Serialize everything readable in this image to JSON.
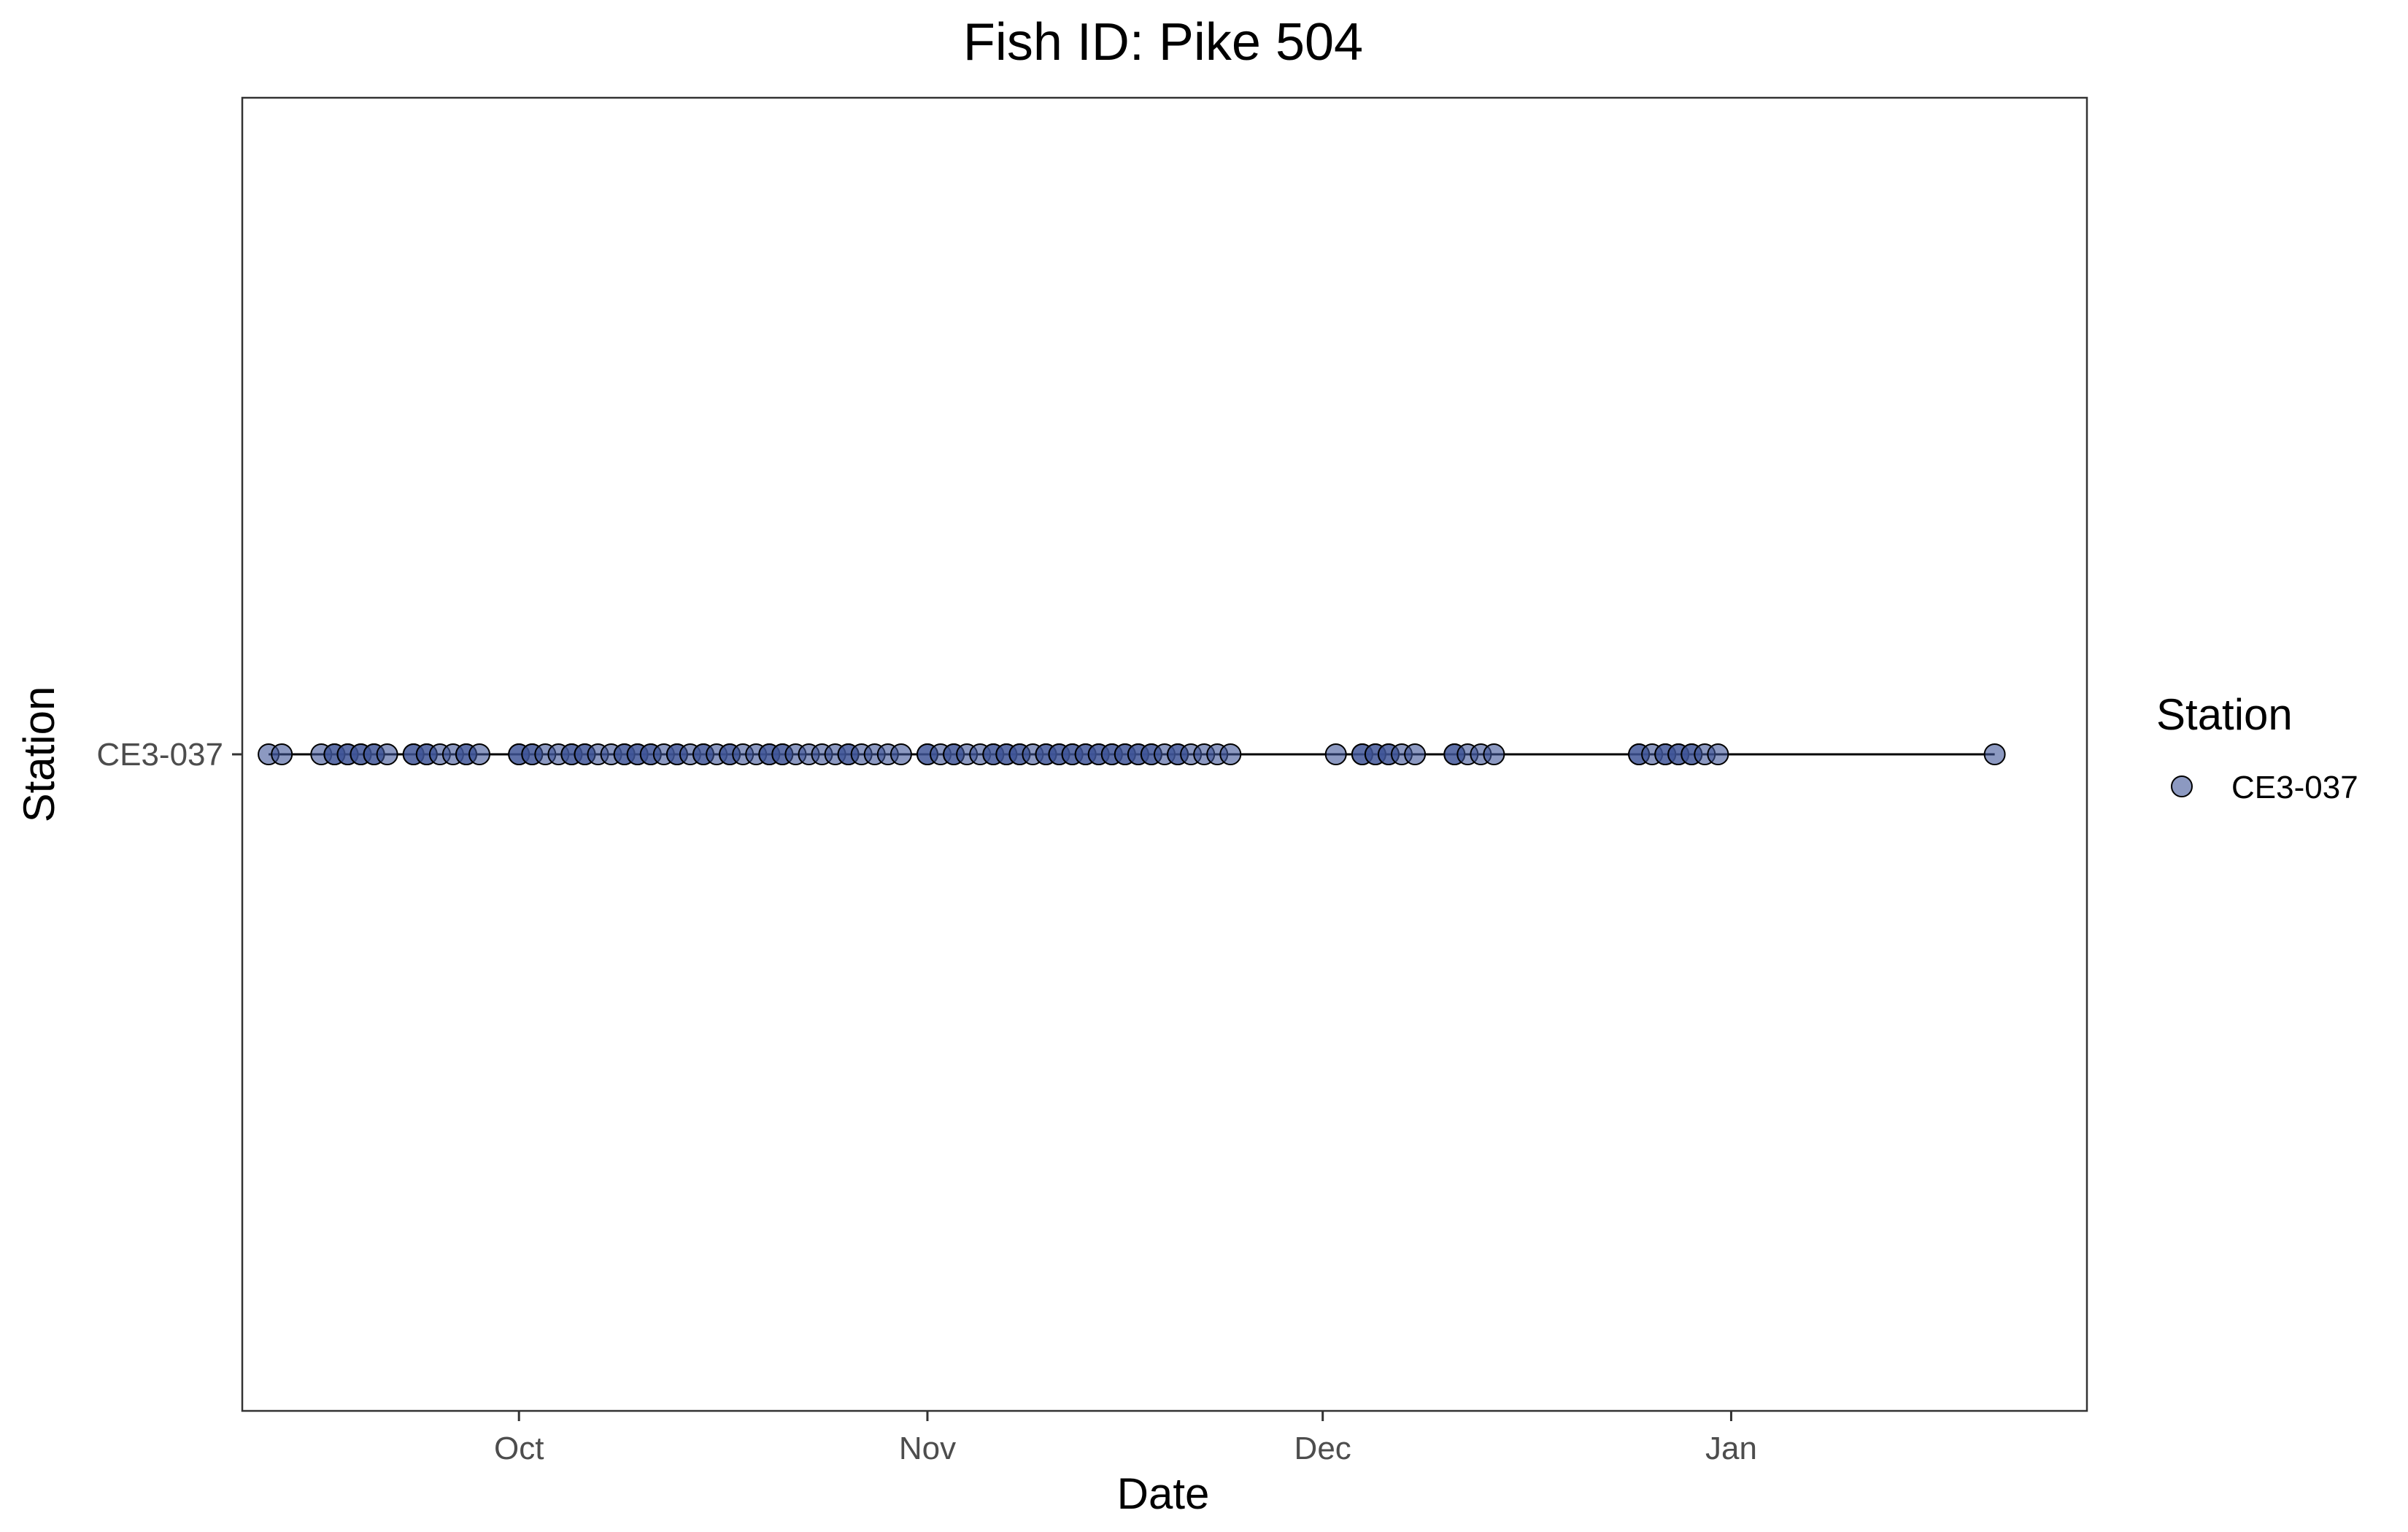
{
  "chart_data": {
    "type": "scatter",
    "title": "Fish ID: Pike 504",
    "xlabel": "Date",
    "ylabel": "Station",
    "x_ticks": [
      "Oct",
      "Nov",
      "Dec",
      "Jan"
    ],
    "x_tick_dates": [
      "2023-10-01",
      "2023-11-01",
      "2023-12-01",
      "2024-01-01"
    ],
    "xlim": [
      "2023-09-10",
      "2024-01-28"
    ],
    "categories": [
      "CE3-037"
    ],
    "connect_points": true,
    "grid": false,
    "legend": {
      "title": "Station",
      "position": "right",
      "entries": [
        "CE3-037"
      ]
    },
    "series": [
      {
        "name": "CE3-037",
        "color": "#3f5597",
        "x": [
          "2023-09-12",
          "2023-09-13",
          "2023-09-16",
          "2023-09-17",
          "2023-09-17",
          "2023-09-18",
          "2023-09-18",
          "2023-09-19",
          "2023-09-19",
          "2023-09-20",
          "2023-09-20",
          "2023-09-21",
          "2023-09-23",
          "2023-09-23",
          "2023-09-24",
          "2023-09-24",
          "2023-09-25",
          "2023-09-26",
          "2023-09-27",
          "2023-09-27",
          "2023-09-28",
          "2023-10-01",
          "2023-10-01",
          "2023-10-02",
          "2023-10-02",
          "2023-10-03",
          "2023-10-04",
          "2023-10-05",
          "2023-10-05",
          "2023-10-06",
          "2023-10-06",
          "2023-10-07",
          "2023-10-08",
          "2023-10-09",
          "2023-10-09",
          "2023-10-10",
          "2023-10-10",
          "2023-10-11",
          "2023-10-11",
          "2023-10-12",
          "2023-10-13",
          "2023-10-13",
          "2023-10-14",
          "2023-10-15",
          "2023-10-15",
          "2023-10-16",
          "2023-10-17",
          "2023-10-17",
          "2023-10-18",
          "2023-10-19",
          "2023-10-20",
          "2023-10-20",
          "2023-10-21",
          "2023-10-21",
          "2023-10-22",
          "2023-10-23",
          "2023-10-24",
          "2023-10-25",
          "2023-10-26",
          "2023-10-26",
          "2023-10-27",
          "2023-10-28",
          "2023-10-29",
          "2023-10-30",
          "2023-11-01",
          "2023-11-01",
          "2023-11-02",
          "2023-11-03",
          "2023-11-03",
          "2023-11-04",
          "2023-11-05",
          "2023-11-06",
          "2023-11-06",
          "2023-11-07",
          "2023-11-07",
          "2023-11-08",
          "2023-11-08",
          "2023-11-09",
          "2023-11-10",
          "2023-11-10",
          "2023-11-11",
          "2023-11-11",
          "2023-11-12",
          "2023-11-12",
          "2023-11-13",
          "2023-11-13",
          "2023-11-14",
          "2023-11-14",
          "2023-11-15",
          "2023-11-15",
          "2023-11-16",
          "2023-11-16",
          "2023-11-17",
          "2023-11-17",
          "2023-11-18",
          "2023-11-18",
          "2023-11-19",
          "2023-11-20",
          "2023-11-20",
          "2023-11-21",
          "2023-11-22",
          "2023-11-23",
          "2023-11-24",
          "2023-12-02",
          "2023-12-04",
          "2023-12-04",
          "2023-12-05",
          "2023-12-05",
          "2023-12-06",
          "2023-12-06",
          "2023-12-07",
          "2023-12-08",
          "2023-12-11",
          "2023-12-11",
          "2023-12-12",
          "2023-12-13",
          "2023-12-14",
          "2023-12-25",
          "2023-12-25",
          "2023-12-26",
          "2023-12-27",
          "2023-12-27",
          "2023-12-28",
          "2023-12-28",
          "2023-12-29",
          "2023-12-29",
          "2023-12-30",
          "2023-12-31",
          "2024-01-21"
        ],
        "y": "CE3-037"
      }
    ]
  }
}
